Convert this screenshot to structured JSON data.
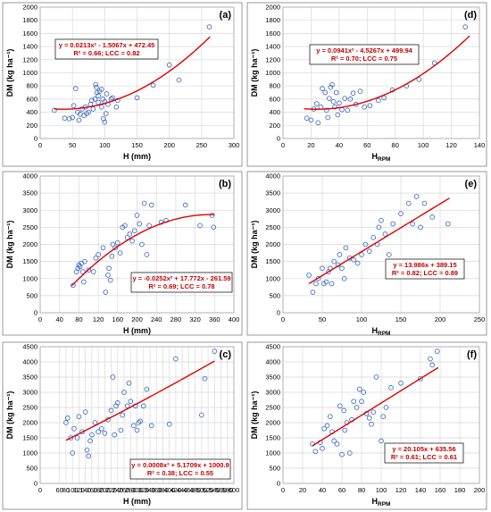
{
  "chart_data": [
    {
      "type": "scatter",
      "panel_label": "(a)",
      "xlabel": "H (mm)",
      "ylabel": "DM (kg ha⁻¹)",
      "xlim": [
        0,
        300
      ],
      "ylim": [
        0,
        2000
      ],
      "xticks": [
        0,
        50,
        100,
        150,
        200,
        250,
        300
      ],
      "yticks": [
        0,
        200,
        400,
        600,
        800,
        1000,
        1200,
        1400,
        1600,
        1800,
        2000
      ],
      "equation": "y = 0.0213x² - 1.5067x + 472.45",
      "stats": "R² = 0.66; LCC = 0.82",
      "fit": {
        "kind": "poly2",
        "coef": [
          0.0213,
          -1.5067,
          472.45
        ],
        "range": [
          22,
          263
        ]
      },
      "points": [
        [
          22,
          430
        ],
        [
          38,
          310
        ],
        [
          45,
          300
        ],
        [
          50,
          320
        ],
        [
          52,
          500
        ],
        [
          55,
          760
        ],
        [
          58,
          400
        ],
        [
          60,
          280
        ],
        [
          62,
          370
        ],
        [
          65,
          450
        ],
        [
          68,
          350
        ],
        [
          70,
          480
        ],
        [
          72,
          380
        ],
        [
          75,
          400
        ],
        [
          78,
          520
        ],
        [
          80,
          580
        ],
        [
          82,
          450
        ],
        [
          85,
          600
        ],
        [
          86,
          820
        ],
        [
          87,
          780
        ],
        [
          88,
          700
        ],
        [
          90,
          650
        ],
        [
          90,
          550
        ],
        [
          92,
          720
        ],
        [
          95,
          750
        ],
        [
          95,
          480
        ],
        [
          97,
          600
        ],
        [
          98,
          300
        ],
        [
          100,
          250
        ],
        [
          100,
          560
        ],
        [
          102,
          380
        ],
        [
          103,
          680
        ],
        [
          105,
          520
        ],
        [
          110,
          600
        ],
        [
          112,
          620
        ],
        [
          118,
          480
        ],
        [
          120,
          580
        ],
        [
          150,
          620
        ],
        [
          175,
          810
        ],
        [
          200,
          1120
        ],
        [
          215,
          890
        ],
        [
          262,
          1700
        ]
      ]
    },
    {
      "type": "scatter",
      "panel_label": "(d)",
      "xlabel": "HRPM",
      "xlabel_main": "H",
      "xlabel_sub": "RPM",
      "ylabel": "DM (kg ha⁻¹)",
      "xlim": [
        0,
        140
      ],
      "ylim": [
        0,
        2000
      ],
      "xticks": [
        0,
        20,
        40,
        60,
        80,
        100,
        120,
        140
      ],
      "yticks": [
        0,
        200,
        400,
        600,
        800,
        1000,
        1200,
        1400,
        1600,
        1800,
        2000
      ],
      "equation": "y = 0.0941x² - 4.5267x + 499.94",
      "stats": "R² = 0.70; LCC = 0.75",
      "fit": {
        "kind": "poly2",
        "coef": [
          0.0941,
          -4.5267,
          499.94
        ],
        "range": [
          15,
          133
        ]
      },
      "points": [
        [
          17,
          310
        ],
        [
          20,
          280
        ],
        [
          22,
          450
        ],
        [
          24,
          530
        ],
        [
          25,
          240
        ],
        [
          27,
          480
        ],
        [
          28,
          760
        ],
        [
          30,
          700
        ],
        [
          31,
          430
        ],
        [
          32,
          320
        ],
        [
          33,
          610
        ],
        [
          34,
          780
        ],
        [
          35,
          820
        ],
        [
          36,
          560
        ],
        [
          37,
          480
        ],
        [
          38,
          700
        ],
        [
          39,
          360
        ],
        [
          40,
          540
        ],
        [
          42,
          440
        ],
        [
          44,
          610
        ],
        [
          46,
          430
        ],
        [
          48,
          600
        ],
        [
          50,
          690
        ],
        [
          52,
          520
        ],
        [
          55,
          720
        ],
        [
          58,
          480
        ],
        [
          62,
          500
        ],
        [
          68,
          580
        ],
        [
          72,
          620
        ],
        [
          78,
          740
        ],
        [
          88,
          800
        ],
        [
          97,
          900
        ],
        [
          108,
          1150
        ],
        [
          130,
          1700
        ]
      ]
    },
    {
      "type": "scatter",
      "panel_label": "(b)",
      "xlabel": "H (mm)",
      "ylabel": "DM (kg ha⁻¹)",
      "xlim": [
        0,
        400
      ],
      "ylim": [
        0,
        4000
      ],
      "xticks": [
        0,
        20,
        40,
        60,
        80,
        100,
        120,
        140,
        160,
        180,
        200,
        220,
        240,
        260,
        280,
        300,
        320,
        340,
        360,
        380,
        400
      ],
      "xtick_labels": [
        0,
        40,
        80,
        120,
        160,
        200,
        240,
        280,
        320,
        360,
        400
      ],
      "yticks": [
        0,
        500,
        1000,
        1500,
        2000,
        2500,
        3000,
        3500,
        4000
      ],
      "equation": "y = -0.0252x² + 17.772x - 261.59",
      "stats": "R² = 0.69; LCC = 0.78",
      "fit": {
        "kind": "poly2",
        "coef": [
          -0.0252,
          17.772,
          -261.59
        ],
        "range": [
          65,
          360
        ]
      },
      "points": [
        [
          68,
          800
        ],
        [
          75,
          1200
        ],
        [
          78,
          1300
        ],
        [
          80,
          1400
        ],
        [
          82,
          1350
        ],
        [
          85,
          1450
        ],
        [
          88,
          1200
        ],
        [
          90,
          900
        ],
        [
          92,
          1500
        ],
        [
          100,
          1250
        ],
        [
          110,
          1200
        ],
        [
          115,
          1600
        ],
        [
          120,
          1700
        ],
        [
          130,
          1900
        ],
        [
          135,
          600
        ],
        [
          140,
          1100
        ],
        [
          142,
          1300
        ],
        [
          145,
          950
        ],
        [
          148,
          1650
        ],
        [
          150,
          2000
        ],
        [
          155,
          1900
        ],
        [
          160,
          2050
        ],
        [
          165,
          1750
        ],
        [
          170,
          2500
        ],
        [
          175,
          2550
        ],
        [
          180,
          2200
        ],
        [
          185,
          2300
        ],
        [
          190,
          2100
        ],
        [
          195,
          2400
        ],
        [
          200,
          2850
        ],
        [
          205,
          2600
        ],
        [
          210,
          2000
        ],
        [
          215,
          3200
        ],
        [
          220,
          1700
        ],
        [
          225,
          2550
        ],
        [
          230,
          3150
        ],
        [
          250,
          2650
        ],
        [
          260,
          2700
        ],
        [
          300,
          3150
        ],
        [
          330,
          2550
        ],
        [
          355,
          2850
        ],
        [
          358,
          2500
        ]
      ]
    },
    {
      "type": "scatter",
      "panel_label": "(e)",
      "xlabel": "HRPM",
      "xlabel_main": "H",
      "xlabel_sub": "RPM",
      "ylabel": "DM (kg ha⁻¹)",
      "xlim": [
        0,
        250
      ],
      "ylim": [
        0,
        4000
      ],
      "xticks": [
        0,
        25,
        50,
        75,
        100,
        125,
        150,
        175,
        200,
        225,
        250
      ],
      "xtick_labels": [
        0,
        50,
        100,
        150,
        200,
        250
      ],
      "yticks": [
        0,
        500,
        1000,
        1500,
        2000,
        2500,
        3000,
        3500,
        4000
      ],
      "equation": "y = 13.986x + 389.15",
      "stats": "R² = 0.82; LCC = 0.89",
      "fit": {
        "kind": "linear",
        "coef": [
          13.986,
          389.15
        ],
        "range": [
          33,
          212
        ]
      },
      "points": [
        [
          33,
          1100
        ],
        [
          38,
          600
        ],
        [
          42,
          850
        ],
        [
          45,
          1000
        ],
        [
          50,
          1300
        ],
        [
          52,
          850
        ],
        [
          55,
          900
        ],
        [
          58,
          1200
        ],
        [
          60,
          1300
        ],
        [
          62,
          850
        ],
        [
          65,
          1500
        ],
        [
          70,
          1400
        ],
        [
          72,
          1700
        ],
        [
          75,
          1300
        ],
        [
          78,
          1000
        ],
        [
          80,
          1900
        ],
        [
          85,
          1600
        ],
        [
          90,
          1550
        ],
        [
          95,
          1450
        ],
        [
          100,
          1700
        ],
        [
          105,
          2000
        ],
        [
          110,
          1800
        ],
        [
          115,
          2200
        ],
        [
          120,
          2000
        ],
        [
          122,
          2500
        ],
        [
          125,
          2700
        ],
        [
          130,
          2300
        ],
        [
          135,
          1700
        ],
        [
          140,
          2600
        ],
        [
          150,
          2900
        ],
        [
          160,
          3200
        ],
        [
          165,
          2600
        ],
        [
          170,
          3400
        ],
        [
          175,
          2500
        ],
        [
          180,
          3200
        ],
        [
          190,
          2800
        ],
        [
          210,
          2600
        ]
      ]
    },
    {
      "type": "scatter",
      "panel_label": "(c)",
      "xlabel": "H (mm)",
      "ylabel": "DM (kg ha⁻¹)",
      "xlim": [
        0,
        600
      ],
      "ylim": [
        0,
        4500
      ],
      "xticks": [
        0,
        20,
        40,
        60,
        80,
        100,
        120,
        140,
        160,
        180,
        200,
        220,
        240,
        260,
        280,
        300,
        320,
        340,
        360,
        380,
        400,
        420,
        440,
        460,
        480,
        500,
        520,
        540,
        560,
        580,
        600
      ],
      "xtick_labels": [
        0,
        60,
        80,
        100,
        120,
        140,
        160,
        180,
        200,
        220,
        240,
        260,
        280,
        300,
        320,
        340,
        360,
        380,
        400,
        420,
        440,
        460,
        480,
        500,
        520,
        540,
        560,
        580,
        600
      ],
      "xtick_display": [
        0,
        20,
        40,
        60,
        80,
        100,
        120,
        140,
        160,
        180,
        200,
        220,
        240,
        260,
        280,
        300,
        320,
        340,
        360,
        380,
        400,
        420,
        440,
        460,
        480,
        500,
        520,
        540,
        560,
        580,
        600
      ],
      "yticks": [
        0,
        500,
        1000,
        1500,
        2000,
        2500,
        3000,
        3500,
        4000,
        4500
      ],
      "equation": "y = 0.0008x² + 5.1709x + 1000.9",
      "stats": "R² = 0.38; LCC = 0.55",
      "fit": {
        "kind": "poly2",
        "coef": [
          0.0008,
          5.1709,
          1000.9
        ],
        "range": [
          80,
          540
        ]
      },
      "points": [
        [
          80,
          2000
        ],
        [
          85,
          2150
        ],
        [
          95,
          1500
        ],
        [
          100,
          1000
        ],
        [
          105,
          1800
        ],
        [
          115,
          1500
        ],
        [
          120,
          2200
        ],
        [
          130,
          1700
        ],
        [
          140,
          2350
        ],
        [
          145,
          1100
        ],
        [
          150,
          900
        ],
        [
          155,
          1400
        ],
        [
          160,
          1600
        ],
        [
          170,
          2000
        ],
        [
          180,
          1700
        ],
        [
          190,
          1800
        ],
        [
          200,
          1650
        ],
        [
          210,
          2100
        ],
        [
          220,
          2400
        ],
        [
          225,
          3500
        ],
        [
          230,
          1600
        ],
        [
          235,
          2550
        ],
        [
          240,
          2650
        ],
        [
          250,
          1750
        ],
        [
          255,
          2250
        ],
        [
          260,
          3000
        ],
        [
          270,
          2550
        ],
        [
          275,
          3300
        ],
        [
          280,
          2700
        ],
        [
          290,
          1900
        ],
        [
          295,
          2550
        ],
        [
          300,
          1750
        ],
        [
          305,
          2000
        ],
        [
          310,
          2050
        ],
        [
          320,
          2550
        ],
        [
          330,
          3100
        ],
        [
          345,
          1900
        ],
        [
          400,
          1950
        ],
        [
          420,
          4100
        ],
        [
          500,
          2250
        ],
        [
          510,
          3450
        ],
        [
          540,
          4350
        ]
      ]
    },
    {
      "type": "scatter",
      "panel_label": "(f)",
      "xlabel": "HRPM",
      "xlabel_main": "H",
      "xlabel_sub": "RPM",
      "ylabel": "DM (kg ha⁻¹)",
      "xlim": [
        0,
        200
      ],
      "ylim": [
        0,
        4500
      ],
      "xticks": [
        0,
        20,
        40,
        60,
        80,
        100,
        120,
        140,
        160,
        180,
        200
      ],
      "yticks": [
        0,
        500,
        1000,
        1500,
        2000,
        2500,
        3000,
        3500,
        4000,
        4500
      ],
      "equation": "y = 20.105x + 635.56",
      "stats": "R² = 0.61; LCC = 0.61",
      "fit": {
        "kind": "linear",
        "coef": [
          20.105,
          635.56
        ],
        "range": [
          30,
          158
        ]
      },
      "points": [
        [
          30,
          1300
        ],
        [
          33,
          1050
        ],
        [
          38,
          1350
        ],
        [
          40,
          1150
        ],
        [
          42,
          1800
        ],
        [
          45,
          1900
        ],
        [
          48,
          2200
        ],
        [
          50,
          1700
        ],
        [
          52,
          1400
        ],
        [
          55,
          1300
        ],
        [
          58,
          2550
        ],
        [
          60,
          950
        ],
        [
          62,
          2400
        ],
        [
          63,
          1750
        ],
        [
          65,
          2000
        ],
        [
          68,
          1000
        ],
        [
          70,
          2100
        ],
        [
          72,
          2700
        ],
        [
          75,
          2500
        ],
        [
          78,
          3100
        ],
        [
          80,
          2700
        ],
        [
          82,
          3000
        ],
        [
          85,
          2300
        ],
        [
          88,
          2150
        ],
        [
          90,
          1950
        ],
        [
          92,
          2350
        ],
        [
          95,
          3500
        ],
        [
          100,
          1400
        ],
        [
          102,
          2200
        ],
        [
          105,
          2500
        ],
        [
          110,
          3150
        ],
        [
          120,
          3300
        ],
        [
          140,
          3450
        ],
        [
          150,
          4100
        ],
        [
          152,
          3900
        ],
        [
          157,
          4350
        ]
      ]
    }
  ]
}
